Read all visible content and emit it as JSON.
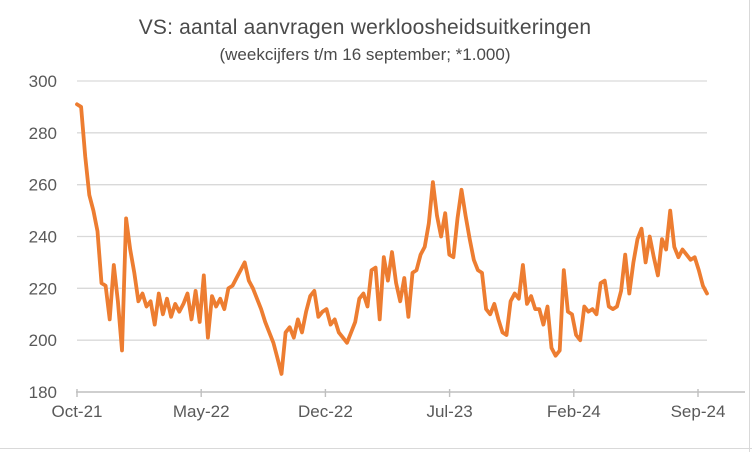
{
  "chart_data": {
    "type": "line",
    "title": "VS: aantal aanvragen werkloosheidsuitkeringen",
    "subtitle": "(weekcijfers t/m 16 september; *1.000)",
    "x_tick_labels": [
      "Oct-21",
      "May-22",
      "Dec-22",
      "Jul-23",
      "Feb-24",
      "Sep-24"
    ],
    "y_ticks": [
      180,
      200,
      220,
      240,
      260,
      280,
      300
    ],
    "ylim": [
      180,
      300
    ],
    "x_axis_note": "weekly values, Oct 2021 through 16 September 2024",
    "legend": "none",
    "grid": "horizontal",
    "colors": {
      "line": "#ED7D31",
      "gridline": "#D9D9D9",
      "axis_line": "#BFBFBF",
      "tick_text": "#595959",
      "title_text": "#4a4a4a",
      "background": "#FFFFFF"
    },
    "values": [
      291,
      290,
      271,
      256,
      250,
      242,
      222,
      221,
      208,
      229,
      215,
      196,
      247,
      235,
      226,
      215,
      218,
      213,
      215,
      206,
      218,
      210,
      216,
      209,
      214,
      211,
      214,
      218,
      208,
      219,
      207,
      225,
      201,
      217,
      213,
      216,
      212,
      220,
      221,
      224,
      227,
      230,
      223,
      220,
      216,
      212,
      207,
      203,
      199,
      193,
      187,
      203,
      205,
      201,
      208,
      203,
      211,
      217,
      219,
      209,
      211,
      212,
      206,
      208,
      203,
      201,
      199,
      203,
      207,
      216,
      218,
      213,
      227,
      228,
      208,
      232,
      223,
      234,
      222,
      215,
      224,
      209,
      226,
      227,
      233,
      236,
      245,
      261,
      248,
      240,
      249,
      233,
      232,
      247,
      258,
      248,
      239,
      231,
      227,
      226,
      212,
      210,
      214,
      208,
      203,
      202,
      215,
      218,
      216,
      229,
      214,
      217,
      212,
      212,
      206,
      213,
      197,
      194,
      196,
      227,
      211,
      210,
      202,
      200,
      213,
      211,
      212,
      210,
      222,
      223,
      213,
      212,
      213,
      219,
      233,
      218,
      230,
      239,
      243,
      230,
      240,
      232,
      225,
      239,
      235,
      250,
      236,
      232,
      235,
      233,
      231,
      232,
      227,
      221,
      218
    ]
  }
}
